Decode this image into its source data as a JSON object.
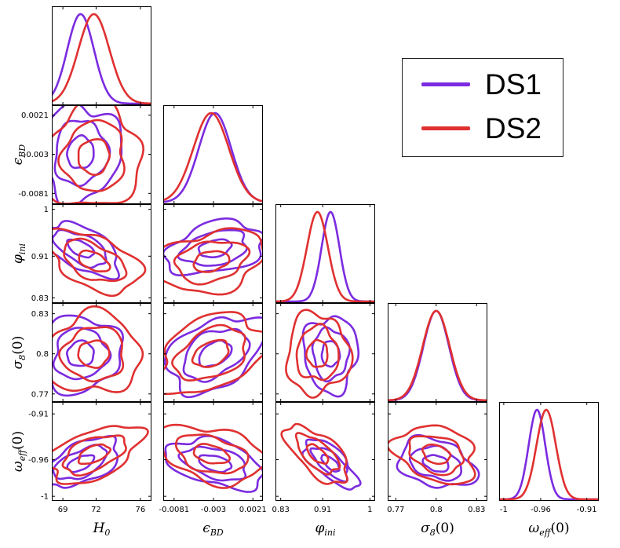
{
  "chart_data": {
    "type": "corner-plot",
    "title": "",
    "parameters": [
      {
        "key": "H0",
        "label": "H",
        "sub": "0",
        "italic": true,
        "range": [
          68,
          77
        ],
        "ticks": [
          69,
          72,
          76
        ],
        "tick_labels": [
          "69",
          "72",
          "76"
        ]
      },
      {
        "key": "epsBD",
        "label": "ϵ",
        "sub": "BD",
        "italic": true,
        "range": [
          -0.0095,
          0.0034
        ],
        "ticks": [
          -0.0081,
          -0.003,
          0.0021
        ],
        "tick_labels": [
          "-0.0081",
          "-0.003",
          "0.0021"
        ]
      },
      {
        "key": "phi_ini",
        "label": "φ",
        "sub": "ini",
        "italic": true,
        "range": [
          0.82,
          1.01
        ],
        "ticks": [
          0.83,
          0.91,
          1.0
        ],
        "tick_labels": [
          "0.83",
          "0.91",
          "1"
        ]
      },
      {
        "key": "sigma8",
        "label": "σ",
        "sub": "8",
        "suffix": "(0)",
        "italic": true,
        "range": [
          0.764,
          0.838
        ],
        "ticks": [
          0.77,
          0.8,
          0.83
        ],
        "tick_labels": [
          "0.77",
          "0.8",
          "0.83"
        ]
      },
      {
        "key": "w_eff",
        "label": "ω",
        "sub": "eff",
        "suffix": "(0)",
        "italic": true,
        "range": [
          -1.005,
          -0.897
        ],
        "ticks": [
          -1.0,
          -0.96,
          -0.91
        ],
        "tick_labels": [
          "-1",
          "-0.96",
          "-0.91"
        ]
      }
    ],
    "series": [
      {
        "name": "DS1",
        "color": "#7b2be0",
        "means": [
          70.6,
          -0.0028,
          0.925,
          0.8,
          -0.964
        ],
        "sigmas": [
          1.2,
          0.0021,
          0.017,
          0.0095,
          0.009
        ]
      },
      {
        "name": "DS2",
        "color": "#e03030",
        "means": [
          71.8,
          -0.0033,
          0.9,
          0.8,
          -0.954
        ],
        "sigmas": [
          1.4,
          0.0023,
          0.02,
          0.01,
          0.0105
        ]
      }
    ],
    "correlations": {
      "0-1": 0.05,
      "0-2": -0.55,
      "0-3": 0.05,
      "0-4": 0.55,
      "1-2": 0.3,
      "1-3": 0.4,
      "1-4": -0.4,
      "2-3": 0.0,
      "2-4": -0.7,
      "3-4": -0.3
    },
    "contour_levels_sigma": [
      1,
      2,
      3
    ],
    "legend": {
      "position": "top-right",
      "entries": [
        "DS1",
        "DS2"
      ]
    }
  },
  "legend": {
    "ds1": "DS1",
    "ds2": "DS2"
  }
}
